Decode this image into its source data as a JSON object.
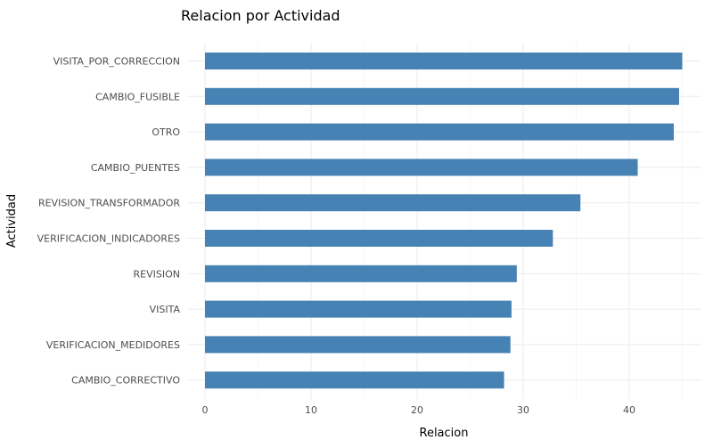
{
  "chart_data": {
    "type": "bar",
    "orientation": "horizontal",
    "title": "Relacion por Actividad",
    "xlabel": "Relacion",
    "ylabel": "Actividad",
    "categories": [
      "VISITA_POR_CORRECCION",
      "CAMBIO_FUSIBLE",
      "OTRO",
      "CAMBIO_PUENTES",
      "REVISION_TRANSFORMADOR",
      "VERIFICACION_INDICADORES",
      "REVISION",
      "VISITA",
      "VERIFICACION_MEDIDORES",
      "CAMBIO_CORRECTIVO"
    ],
    "values": [
      45.0,
      44.7,
      44.2,
      40.8,
      35.4,
      32.8,
      29.4,
      28.9,
      28.8,
      28.2
    ],
    "xlim": [
      0,
      47
    ],
    "xticks": [
      0,
      10,
      20,
      30,
      40
    ],
    "grid": true,
    "legend": "none",
    "bar_color": "#4682B4"
  }
}
